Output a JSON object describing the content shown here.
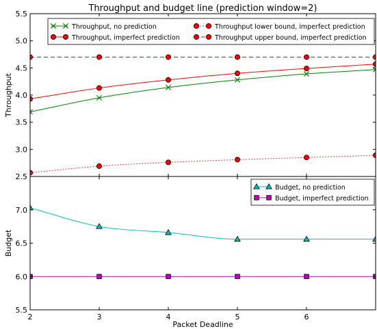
{
  "chart_data": [
    {
      "type": "line",
      "title": "Throughput and budget line (prediction window=2)",
      "xlabel": "",
      "ylabel": "Throughput",
      "xlim": [
        2,
        7
      ],
      "ylim": [
        2.5,
        5.5
      ],
      "x_ticks": [
        2,
        3,
        4,
        5,
        6
      ],
      "y_ticks": [
        "2.5",
        "3.0",
        "3.5",
        "4.0",
        "4.5",
        "5.0",
        "5.5"
      ],
      "grid": false,
      "legend_position": "top",
      "series": [
        {
          "name": "Throughput, no prediction",
          "color": "#008000",
          "line_style": "solid",
          "marker": "x",
          "x": [
            2,
            3,
            4,
            5,
            6,
            7
          ],
          "y": [
            3.69,
            3.95,
            4.14,
            4.28,
            4.39,
            4.47
          ]
        },
        {
          "name": "Throughput, imperfect prediction",
          "color": "#ff0000",
          "line_style": "solid",
          "marker": "circle",
          "x": [
            2,
            3,
            4,
            5,
            6,
            7
          ],
          "y": [
            3.93,
            4.13,
            4.28,
            4.4,
            4.49,
            4.57
          ]
        },
        {
          "name": "Throughput lower bound, imperfect prediction",
          "color": "#ff0000",
          "line_style": "dotted",
          "marker": "circle",
          "x": [
            2,
            3,
            4,
            5,
            6,
            7
          ],
          "y": [
            2.57,
            2.69,
            2.76,
            2.81,
            2.85,
            2.89
          ]
        },
        {
          "name": "Throughput upper bound, imperfect prediction",
          "color": "#ff0000",
          "line_style": "dashed",
          "marker": "circle",
          "x": [
            2,
            3,
            4,
            5,
            6,
            7
          ],
          "y": [
            4.7,
            4.7,
            4.7,
            4.7,
            4.7,
            4.7
          ]
        }
      ]
    },
    {
      "type": "line",
      "title": "",
      "xlabel": "Packet Deadline",
      "ylabel": "Budget",
      "xlim": [
        2,
        7
      ],
      "ylim": [
        5.5,
        7.5
      ],
      "x_ticks": [
        2,
        3,
        4,
        5,
        6
      ],
      "y_ticks": [
        "5.5",
        "6.0",
        "6.5",
        "7.0"
      ],
      "grid": false,
      "legend_position": "top-right",
      "series": [
        {
          "name": "Budget, no prediction",
          "color": "#00bfbf",
          "line_style": "solid",
          "marker": "triangle",
          "x": [
            2,
            3,
            4,
            5,
            6,
            7
          ],
          "y": [
            7.03,
            6.75,
            6.66,
            6.56,
            6.56,
            6.56
          ]
        },
        {
          "name": "Budget, imperfect prediction",
          "color": "#bf00bf",
          "line_style": "solid",
          "marker": "square",
          "x": [
            2,
            3,
            4,
            5,
            6,
            7
          ],
          "y": [
            6.0,
            6.0,
            6.0,
            6.0,
            6.0,
            6.0
          ]
        }
      ]
    }
  ]
}
